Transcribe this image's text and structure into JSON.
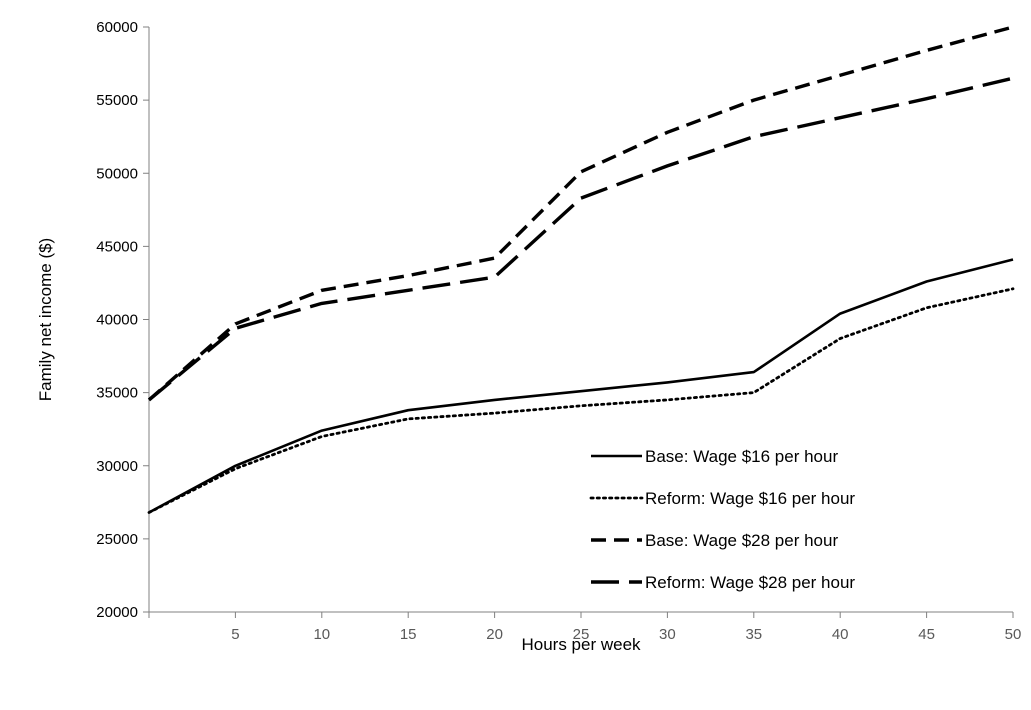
{
  "chart_data": {
    "type": "line",
    "xlabel": "Hours per week",
    "ylabel": "Family net income ($)",
    "xlim": [
      0,
      50
    ],
    "ylim": [
      20000,
      60000
    ],
    "x_ticks": [
      5,
      10,
      15,
      20,
      25,
      30,
      35,
      40,
      45,
      50
    ],
    "y_ticks": [
      20000,
      25000,
      30000,
      35000,
      40000,
      45000,
      50000,
      55000,
      60000
    ],
    "grid": false,
    "legend_position": "lower-right",
    "x": [
      0,
      5,
      10,
      15,
      20,
      25,
      30,
      35,
      40,
      45,
      50
    ],
    "series": [
      {
        "name": "Base: Wage $16 per hour",
        "style": "solid",
        "values": [
          26800,
          30000,
          32400,
          33800,
          34500,
          35100,
          35700,
          36400,
          40400,
          42600,
          44100
        ]
      },
      {
        "name": "Reform: Wage $16 per hour",
        "style": "dotted",
        "values": [
          26800,
          29800,
          32000,
          33200,
          33600,
          34100,
          34500,
          35000,
          38700,
          40800,
          42100
        ]
      },
      {
        "name": "Base: Wage $28 per hour",
        "style": "dashed",
        "values": [
          34500,
          39700,
          42000,
          43000,
          44200,
          50100,
          52800,
          55000,
          56700,
          58400,
          60000
        ]
      },
      {
        "name": "Reform: Wage $28 per hour",
        "style": "longdash",
        "values": [
          34500,
          39400,
          41100,
          42000,
          42900,
          48300,
          50500,
          52500,
          53800,
          55100,
          56500
        ]
      }
    ]
  },
  "colors": {
    "line": "#000000",
    "axis": "#808080"
  }
}
